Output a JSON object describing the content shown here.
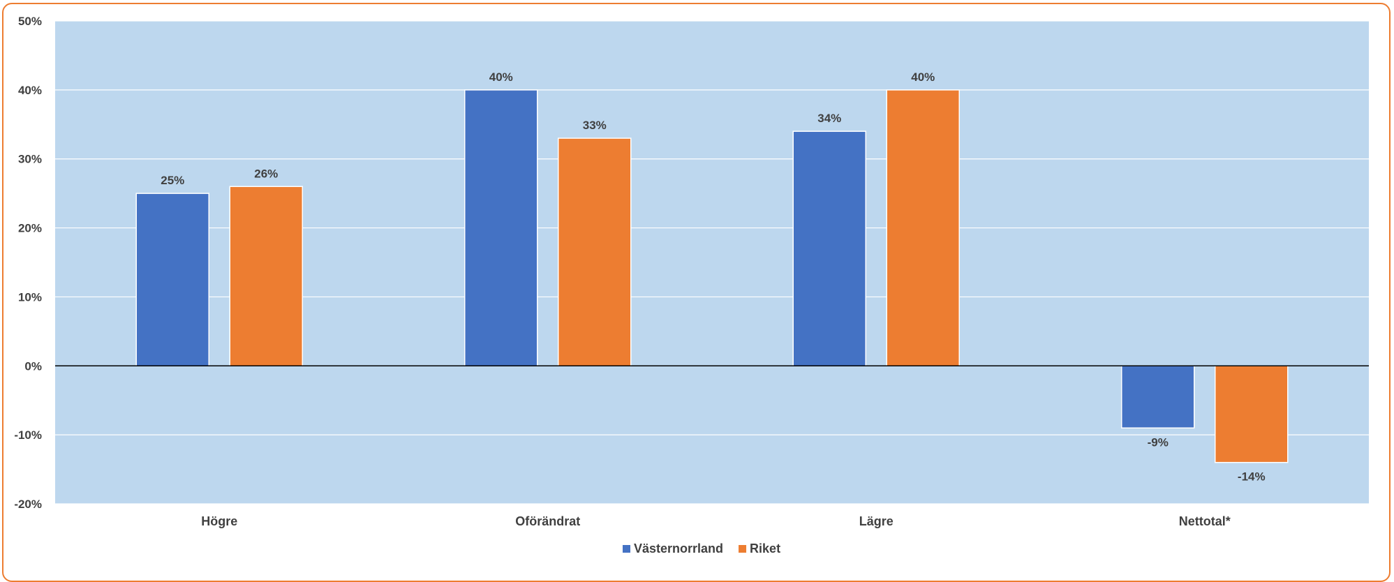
{
  "chart_data": {
    "type": "bar",
    "categories": [
      "Högre",
      "Oförändrat",
      "Lägre",
      "Nettotal*"
    ],
    "series": [
      {
        "name": "Västernorrland",
        "values": [
          25,
          40,
          34,
          -9
        ],
        "labels": [
          "25%",
          "40%",
          "34%",
          "-9%"
        ],
        "color": "#4472c4"
      },
      {
        "name": "Riket",
        "values": [
          26,
          33,
          40,
          -14
        ],
        "labels": [
          "26%",
          "33%",
          "40%",
          "-14%"
        ],
        "color": "#ed7d31"
      }
    ],
    "ylim": [
      -20,
      50
    ],
    "yticks": [
      50,
      40,
      30,
      20,
      10,
      0,
      -10,
      -20
    ],
    "ytick_labels": [
      "50%",
      "40%",
      "30%",
      "20%",
      "10%",
      "0%",
      "-10%",
      "-20%"
    ],
    "grid": true,
    "legend_position": "bottom",
    "plot_background": "#bdd7ee",
    "frame_color": "#ed7d31"
  }
}
